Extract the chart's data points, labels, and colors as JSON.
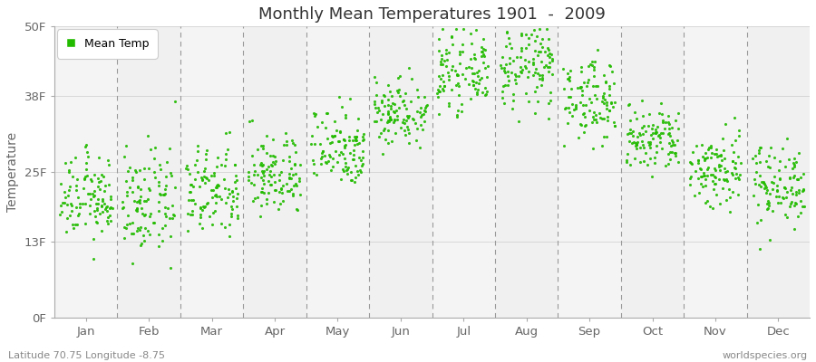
{
  "title": "Monthly Mean Temperatures 1901  -  2009",
  "ylabel": "Temperature",
  "legend_label": "Mean Temp",
  "bottom_left": "Latitude 70.75 Longitude -8.75",
  "bottom_right": "worldspecies.org",
  "ytick_labels": [
    "0F",
    "13F",
    "25F",
    "38F",
    "50F"
  ],
  "ytick_values": [
    0,
    13,
    25,
    38,
    50
  ],
  "ylim": [
    0,
    50
  ],
  "months": [
    "Jan",
    "Feb",
    "Mar",
    "Apr",
    "May",
    "Jun",
    "Jul",
    "Aug",
    "Sep",
    "Oct",
    "Nov",
    "Dec"
  ],
  "month_centers": [
    1,
    2,
    3,
    4,
    5,
    6,
    7,
    8,
    9,
    10,
    11,
    12
  ],
  "dot_color": "#22bb00",
  "plot_bg_color": "#f0f0f0",
  "fig_color": "#ffffff",
  "n_years": 109,
  "monthly_mean_F": [
    20.5,
    19.5,
    21.5,
    24.5,
    29.5,
    35.5,
    42.0,
    43.0,
    37.5,
    30.5,
    25.5,
    23.0
  ],
  "monthly_std_F": [
    3.5,
    4.5,
    4.0,
    3.5,
    3.5,
    3.0,
    3.0,
    3.5,
    3.5,
    3.0,
    3.5,
    3.5
  ]
}
